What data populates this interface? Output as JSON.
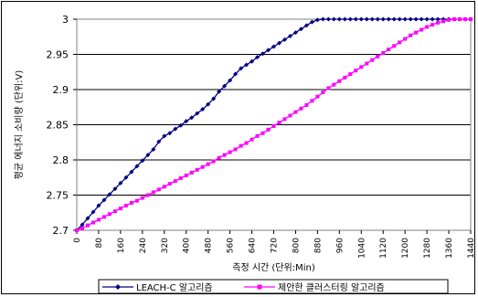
{
  "chart_data": {
    "type": "line",
    "xlabel": "측정 시간 (단위:Min)",
    "ylabel": "평균 에너지 소비량 (단위:V)",
    "ylim": [
      2.7,
      3.0
    ],
    "xlim": [
      0,
      1440
    ],
    "yticks": [
      "2.7",
      "2.75",
      "2.8",
      "2.85",
      "2.9",
      "2.95",
      "3"
    ],
    "xticks": [
      "0",
      "80",
      "160",
      "240",
      "320",
      "400",
      "480",
      "560",
      "640",
      "720",
      "800",
      "880",
      "960",
      "1040",
      "1120",
      "1200",
      "1280",
      "1360",
      "1440"
    ],
    "grid": "horizontal",
    "legend": "bottom",
    "series": [
      {
        "name": "LEACH-C 알고리즘",
        "color": "#000080",
        "marker": "diamond",
        "x": [
          0,
          20,
          40,
          60,
          80,
          100,
          120,
          140,
          160,
          180,
          200,
          220,
          240,
          260,
          280,
          300,
          320,
          340,
          360,
          380,
          400,
          420,
          440,
          460,
          480,
          500,
          520,
          540,
          560,
          580,
          600,
          620,
          640,
          660,
          680,
          700,
          720,
          740,
          760,
          780,
          800,
          820,
          840,
          860,
          880,
          900,
          920,
          940,
          960,
          980,
          1000,
          1020,
          1040,
          1060,
          1080,
          1100,
          1120,
          1140,
          1160,
          1180,
          1200,
          1220,
          1240,
          1260,
          1280,
          1300,
          1320,
          1340,
          1360,
          1380,
          1400,
          1420,
          1440
        ],
        "values": [
          2.7,
          2.708,
          2.717,
          2.726,
          2.735,
          2.743,
          2.751,
          2.759,
          2.767,
          2.775,
          2.783,
          2.791,
          2.799,
          2.807,
          2.815,
          2.826,
          2.834,
          2.838,
          2.844,
          2.849,
          2.855,
          2.86,
          2.866,
          2.872,
          2.879,
          2.887,
          2.897,
          2.905,
          2.913,
          2.922,
          2.93,
          2.935,
          2.94,
          2.946,
          2.951,
          2.956,
          2.961,
          2.966,
          2.971,
          2.976,
          2.981,
          2.986,
          2.991,
          2.996,
          2.999,
          3.0,
          3.0,
          3.0,
          3.0,
          3.0,
          3.0,
          3.0,
          3.0,
          3.0,
          3.0,
          3.0,
          3.0,
          3.0,
          3.0,
          3.0,
          3.0,
          3.0,
          3.0,
          3.0,
          3.0,
          3.0,
          3.0,
          3.0,
          3.0,
          3.0,
          3.0,
          3.0,
          3.0
        ]
      },
      {
        "name": "제안한 클러스터링 알고리즘",
        "color": "#ff00ff",
        "marker": "square",
        "x": [
          0,
          20,
          40,
          60,
          80,
          100,
          120,
          140,
          160,
          180,
          200,
          220,
          240,
          260,
          280,
          300,
          320,
          340,
          360,
          380,
          400,
          420,
          440,
          460,
          480,
          500,
          520,
          540,
          560,
          580,
          600,
          620,
          640,
          660,
          680,
          700,
          720,
          740,
          760,
          780,
          800,
          820,
          840,
          860,
          880,
          900,
          920,
          940,
          960,
          980,
          1000,
          1020,
          1040,
          1060,
          1080,
          1100,
          1120,
          1140,
          1160,
          1180,
          1200,
          1220,
          1240,
          1260,
          1280,
          1300,
          1320,
          1340,
          1360,
          1380,
          1400,
          1420,
          1440
        ],
        "values": [
          2.7,
          2.703,
          2.707,
          2.711,
          2.715,
          2.719,
          2.723,
          2.727,
          2.731,
          2.735,
          2.739,
          2.742,
          2.746,
          2.75,
          2.754,
          2.758,
          2.762,
          2.766,
          2.77,
          2.774,
          2.778,
          2.782,
          2.786,
          2.79,
          2.794,
          2.798,
          2.803,
          2.807,
          2.811,
          2.815,
          2.82,
          2.824,
          2.829,
          2.834,
          2.838,
          2.843,
          2.848,
          2.853,
          2.858,
          2.863,
          2.868,
          2.873,
          2.878,
          2.884,
          2.89,
          2.896,
          2.902,
          2.907,
          2.912,
          2.917,
          2.922,
          2.927,
          2.932,
          2.937,
          2.942,
          2.947,
          2.952,
          2.957,
          2.962,
          2.967,
          2.972,
          2.977,
          2.981,
          2.985,
          2.989,
          2.992,
          2.995,
          2.997,
          2.999,
          3.0,
          3.0,
          3.0,
          3.0
        ]
      }
    ]
  }
}
